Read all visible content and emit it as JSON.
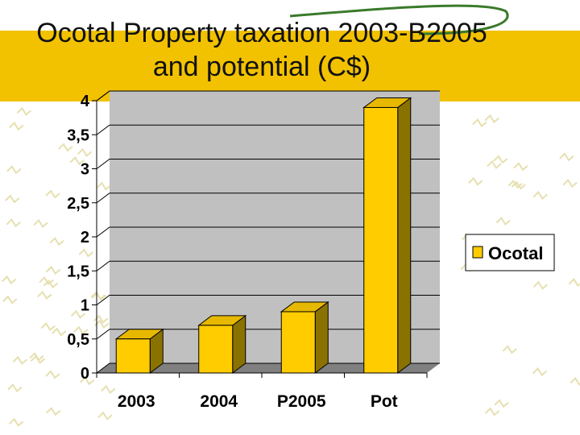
{
  "slide": {
    "title": "Ocotal Property taxation 2003-B2005 and potential (C$)"
  },
  "colors": {
    "title_band": "#f2c200",
    "bar_front": "#ffcc00",
    "bar_side": "#8a7200",
    "bar_top": "#e6b800",
    "plot_back": "#c0c0c0",
    "plot_floor": "#808080"
  },
  "chart_data": {
    "type": "bar",
    "categories": [
      "2003",
      "2004",
      "P2005",
      "Pot"
    ],
    "series": [
      {
        "name": "Ocotal",
        "values": [
          0.5,
          0.7,
          0.9,
          3.9
        ]
      }
    ],
    "y_ticks": [
      "0",
      "0,5",
      "1",
      "1,5",
      "2",
      "2,5",
      "3",
      "3,5",
      "4"
    ],
    "ylim": [
      0,
      4
    ],
    "grid": true,
    "legend_position": "right",
    "style": "3d"
  }
}
